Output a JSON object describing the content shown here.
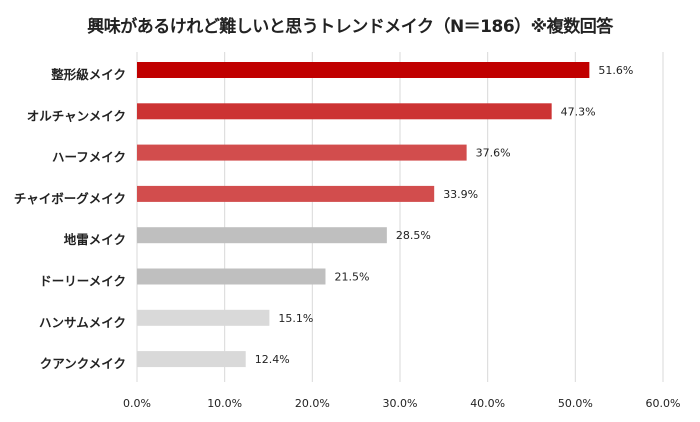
{
  "chart_data": {
    "type": "bar",
    "orientation": "horizontal",
    "title": "興味があるけれど難しいと思うトレンドメイク（N＝186）※複数回答",
    "categories": [
      "整形級メイク",
      "オルチャンメイク",
      "ハーフメイク",
      "チャイボーグメイク",
      "地雷メイク",
      "ドーリーメイク",
      "ハンサムメイク",
      "クアンクメイク"
    ],
    "values": [
      51.6,
      47.3,
      37.6,
      33.9,
      28.5,
      21.5,
      15.1,
      12.4
    ],
    "data_labels": [
      "51.6%",
      "47.3%",
      "37.6%",
      "33.9%",
      "28.5%",
      "21.5%",
      "15.1%",
      "12.4%"
    ],
    "colors": [
      "#C00000",
      "#CC3333",
      "#D24D4D",
      "#D24D4D",
      "#BFBFBF",
      "#BFBFBF",
      "#D9D9D9",
      "#D9D9D9"
    ],
    "xlim": [
      0,
      60
    ],
    "xticks": [
      "0.0%",
      "10.0%",
      "20.0%",
      "30.0%",
      "40.0%",
      "50.0%",
      "60.0%"
    ],
    "grid": true,
    "xlabel": "",
    "ylabel": ""
  }
}
